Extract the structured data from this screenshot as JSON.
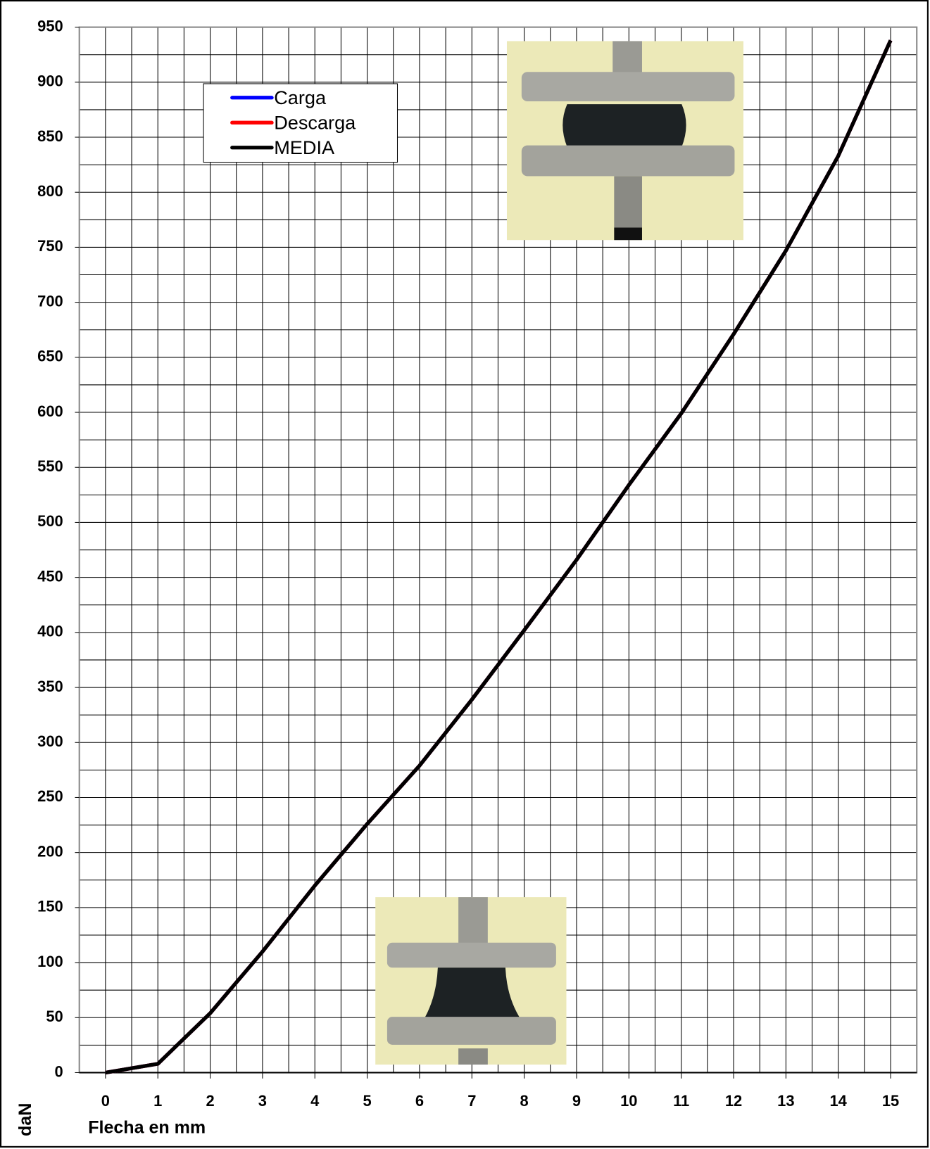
{
  "chart_data": {
    "type": "line",
    "x_label": "Flecha en mm",
    "y_label": "daN",
    "x": [
      0,
      1,
      2,
      3,
      4,
      5,
      6,
      7,
      8,
      9,
      10,
      11,
      12,
      13,
      14,
      15
    ],
    "series": [
      {
        "name": "Carga",
        "color": "#0000ff",
        "values": [
          0,
          8,
          54,
          110,
          170,
          226,
          279,
          339,
          402,
          466,
          534,
          599,
          671,
          747,
          833,
          938
        ]
      },
      {
        "name": "Descarga",
        "color": "#ff0000",
        "values": [
          0,
          8,
          54,
          110,
          170,
          226,
          279,
          339,
          402,
          466,
          534,
          599,
          671,
          747,
          833,
          938
        ]
      },
      {
        "name": "MEDIA",
        "color": "#000000",
        "values": [
          0,
          8,
          54,
          110,
          170,
          226,
          279,
          339,
          402,
          466,
          534,
          599,
          671,
          747,
          833,
          938
        ]
      }
    ],
    "xlim": [
      -0.5,
      15.5
    ],
    "xticks": [
      0,
      1,
      2,
      3,
      4,
      5,
      6,
      7,
      8,
      9,
      10,
      11,
      12,
      13,
      14,
      15
    ],
    "ylim": [
      0,
      950
    ],
    "yticks": [
      0,
      50,
      100,
      150,
      200,
      250,
      300,
      350,
      400,
      450,
      500,
      550,
      600,
      650,
      700,
      750,
      800,
      850,
      900,
      950
    ],
    "grid": true
  }
}
